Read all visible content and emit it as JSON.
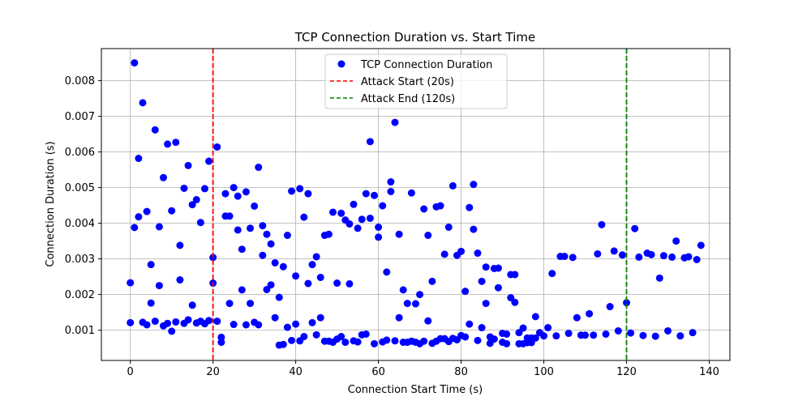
{
  "chart_data": {
    "type": "scatter",
    "title": "TCP Connection Duration vs. Start Time",
    "xlabel": "Connection Start Time (s)",
    "ylabel": "Connection Duration (s)",
    "xlim": [
      -7,
      145
    ],
    "ylim": [
      0.00015,
      0.0089
    ],
    "xticks": [
      0,
      20,
      40,
      60,
      80,
      100,
      120,
      140
    ],
    "yticks": [
      0.001,
      0.002,
      0.003,
      0.004,
      0.005,
      0.006,
      0.007,
      0.008
    ],
    "x_tick_labels": [
      "0",
      "20",
      "40",
      "60",
      "80",
      "100",
      "120",
      "140"
    ],
    "y_tick_labels": [
      "0.001",
      "0.002",
      "0.003",
      "0.004",
      "0.005",
      "0.006",
      "0.007",
      "0.008"
    ],
    "grid": true,
    "legend_position": "top-center",
    "colors": {
      "points": "#0000ff",
      "attack_start": "#ff0000",
      "attack_end": "#008000"
    },
    "vlines": [
      {
        "name": "Attack Start (20s)",
        "x": 20,
        "color": "#ff0000",
        "style": "dashed"
      },
      {
        "name": "Attack End (120s)",
        "x": 120,
        "color": "#008000",
        "style": "dashed"
      }
    ],
    "series": [
      {
        "name": "TCP Connection Duration",
        "points": [
          [
            0,
            0.00233
          ],
          [
            0,
            0.00121
          ],
          [
            1,
            0.0085
          ],
          [
            1,
            0.00388
          ],
          [
            2,
            0.00582
          ],
          [
            2,
            0.00418
          ],
          [
            3,
            0.00738
          ],
          [
            3,
            0.00122
          ],
          [
            4,
            0.00433
          ],
          [
            4,
            0.00115
          ],
          [
            5,
            0.00284
          ],
          [
            5,
            0.00176
          ],
          [
            6,
            0.00662
          ],
          [
            6,
            0.00125
          ],
          [
            7,
            0.0039
          ],
          [
            7,
            0.00225
          ],
          [
            8,
            0.00528
          ],
          [
            8,
            0.00112
          ],
          [
            9,
            0.00622
          ],
          [
            9,
            0.00119
          ],
          [
            10,
            0.00435
          ],
          [
            10,
            0.00097
          ],
          [
            11,
            0.00627
          ],
          [
            11,
            0.00123
          ],
          [
            12,
            0.00338
          ],
          [
            12,
            0.00241
          ],
          [
            13,
            0.00498
          ],
          [
            13,
            0.00119
          ],
          [
            14,
            0.00562
          ],
          [
            14,
            0.00129
          ],
          [
            15,
            0.00452
          ],
          [
            15,
            0.0017
          ],
          [
            16,
            0.00466
          ],
          [
            16,
            0.0012
          ],
          [
            17,
            0.00402
          ],
          [
            17,
            0.00125
          ],
          [
            18,
            0.00497
          ],
          [
            18,
            0.00118
          ],
          [
            19,
            0.00574
          ],
          [
            19,
            0.00127
          ],
          [
            20,
            0.00304
          ],
          [
            20,
            0.00232
          ],
          [
            21,
            0.00614
          ],
          [
            21,
            0.00125
          ],
          [
            22,
            0.0008
          ],
          [
            22,
            0.00066
          ],
          [
            23,
            0.00483
          ],
          [
            23,
            0.0042
          ],
          [
            24,
            0.0042
          ],
          [
            24,
            0.00175
          ],
          [
            25,
            0.005
          ],
          [
            25,
            0.00116
          ],
          [
            26,
            0.00476
          ],
          [
            26,
            0.00381
          ],
          [
            27,
            0.00327
          ],
          [
            27,
            0.00213
          ],
          [
            28,
            0.00488
          ],
          [
            28,
            0.00115
          ],
          [
            29,
            0.00386
          ],
          [
            29,
            0.00175
          ],
          [
            30,
            0.00448
          ],
          [
            30,
            0.00122
          ],
          [
            31,
            0.00557
          ],
          [
            31,
            0.00115
          ],
          [
            32,
            0.00393
          ],
          [
            32,
            0.0031
          ],
          [
            33,
            0.00369
          ],
          [
            33,
            0.00214
          ],
          [
            34,
            0.00342
          ],
          [
            34,
            0.00227
          ],
          [
            35,
            0.00289
          ],
          [
            35,
            0.00135
          ],
          [
            36,
            0.00192
          ],
          [
            36,
            0.00058
          ],
          [
            37,
            0.00278
          ],
          [
            37,
            0.0006
          ],
          [
            38,
            0.00366
          ],
          [
            38,
            0.00108
          ],
          [
            39,
            0.0049
          ],
          [
            39,
            0.00071
          ],
          [
            40,
            0.00252
          ],
          [
            40,
            0.00117
          ],
          [
            41,
            0.00497
          ],
          [
            41,
            0.0007
          ],
          [
            42,
            0.00417
          ],
          [
            42,
            0.00082
          ],
          [
            43,
            0.00483
          ],
          [
            43,
            0.00231
          ],
          [
            44,
            0.00284
          ],
          [
            44,
            0.00121
          ],
          [
            45,
            0.00306
          ],
          [
            45,
            0.00087
          ],
          [
            46,
            0.00248
          ],
          [
            46,
            0.00135
          ],
          [
            47,
            0.00366
          ],
          [
            47,
            0.00069
          ],
          [
            48,
            0.00369
          ],
          [
            48,
            0.00069
          ],
          [
            49,
            0.00431
          ],
          [
            49,
            0.00066
          ],
          [
            50,
            0.00232
          ],
          [
            50,
            0.00075
          ],
          [
            51,
            0.00428
          ],
          [
            51,
            0.00082
          ],
          [
            52,
            0.00409
          ],
          [
            52,
            0.00066
          ],
          [
            53,
            0.00398
          ],
          [
            53,
            0.0023
          ],
          [
            54,
            0.00453
          ],
          [
            54,
            0.0007
          ],
          [
            55,
            0.00386
          ],
          [
            55,
            0.00067
          ],
          [
            56,
            0.00411
          ],
          [
            56,
            0.00087
          ],
          [
            57,
            0.00483
          ],
          [
            57,
            0.00089
          ],
          [
            58,
            0.00629
          ],
          [
            58,
            0.00414
          ],
          [
            59,
            0.00478
          ],
          [
            59,
            0.00062
          ],
          [
            60,
            0.00389
          ],
          [
            60,
            0.00361
          ],
          [
            61,
            0.00449
          ],
          [
            61,
            0.00067
          ],
          [
            62,
            0.00263
          ],
          [
            62,
            0.00072
          ],
          [
            63,
            0.00516
          ],
          [
            63,
            0.00489
          ],
          [
            64,
            0.00683
          ],
          [
            64,
            0.0007
          ],
          [
            65,
            0.00369
          ],
          [
            65,
            0.00135
          ],
          [
            66,
            0.00213
          ],
          [
            66,
            0.00066
          ],
          [
            67,
            0.00175
          ],
          [
            67,
            0.00066
          ],
          [
            68,
            0.00485
          ],
          [
            68,
            0.00069
          ],
          [
            69,
            0.00174
          ],
          [
            69,
            0.00066
          ],
          [
            70,
            0.002
          ],
          [
            70,
            0.00062
          ],
          [
            71,
            0.0044
          ],
          [
            71,
            0.00069
          ],
          [
            72,
            0.00366
          ],
          [
            72,
            0.00126
          ],
          [
            73,
            0.00237
          ],
          [
            73,
            0.00063
          ],
          [
            74,
            0.00446
          ],
          [
            74,
            0.00069
          ],
          [
            75,
            0.00449
          ],
          [
            75,
            0.00076
          ],
          [
            76,
            0.00313
          ],
          [
            76,
            0.00076
          ],
          [
            77,
            0.00389
          ],
          [
            77,
            0.00068
          ],
          [
            78,
            0.00505
          ],
          [
            78,
            0.00077
          ],
          [
            79,
            0.0031
          ],
          [
            79,
            0.00073
          ],
          [
            80,
            0.00321
          ],
          [
            80,
            0.00085
          ],
          [
            81,
            0.00209
          ],
          [
            81,
            0.00081
          ],
          [
            82,
            0.00444
          ],
          [
            82,
            0.00117
          ],
          [
            83,
            0.00509
          ],
          [
            83,
            0.00383
          ],
          [
            84,
            0.00316
          ],
          [
            84,
            0.00071
          ],
          [
            85,
            0.00237
          ],
          [
            85,
            0.00107
          ],
          [
            86,
            0.00277
          ],
          [
            86,
            0.00175
          ],
          [
            87,
            0.00081
          ],
          [
            87,
            0.00063
          ],
          [
            88,
            0.00273
          ],
          [
            88,
            0.00075
          ],
          [
            89,
            0.00274
          ],
          [
            89,
            0.00219
          ],
          [
            90,
            0.00091
          ],
          [
            90,
            0.00066
          ],
          [
            91,
            0.00089
          ],
          [
            91,
            0.00062
          ],
          [
            92,
            0.00256
          ],
          [
            92,
            0.00191
          ],
          [
            93,
            0.00256
          ],
          [
            93,
            0.00178
          ],
          [
            94,
            0.00093
          ],
          [
            94,
            0.00062
          ],
          [
            95,
            0.00106
          ],
          [
            95,
            0.00062
          ],
          [
            96,
            0.00078
          ],
          [
            96,
            0.00065
          ],
          [
            97,
            0.00078
          ],
          [
            97,
            0.00065
          ],
          [
            98,
            0.00138
          ],
          [
            98,
            0.00078
          ],
          [
            99,
            0.00093
          ],
          [
            100,
            0.00084
          ],
          [
            101,
            0.00107
          ],
          [
            102,
            0.00259
          ],
          [
            103,
            0.00084
          ],
          [
            104,
            0.00307
          ],
          [
            105,
            0.00307
          ],
          [
            106,
            0.00091
          ],
          [
            107,
            0.00304
          ],
          [
            108,
            0.00135
          ],
          [
            109,
            0.00086
          ],
          [
            110,
            0.00086
          ],
          [
            111,
            0.00146
          ],
          [
            112,
            0.00086
          ],
          [
            113,
            0.00314
          ],
          [
            114,
            0.00396
          ],
          [
            115,
            0.00089
          ],
          [
            116,
            0.00166
          ],
          [
            117,
            0.00322
          ],
          [
            118,
            0.00098
          ],
          [
            119,
            0.00311
          ],
          [
            120,
            0.00177
          ],
          [
            121,
            0.00092
          ],
          [
            122,
            0.00385
          ],
          [
            123,
            0.00305
          ],
          [
            124,
            0.00085
          ],
          [
            125,
            0.00316
          ],
          [
            126,
            0.00312
          ],
          [
            127,
            0.00083
          ],
          [
            128,
            0.00246
          ],
          [
            129,
            0.00309
          ],
          [
            130,
            0.00098
          ],
          [
            131,
            0.00305
          ],
          [
            132,
            0.0035
          ],
          [
            133,
            0.00084
          ],
          [
            134,
            0.00303
          ],
          [
            135,
            0.00306
          ],
          [
            136,
            0.00093
          ],
          [
            137,
            0.00298
          ],
          [
            138,
            0.00338
          ]
        ]
      }
    ]
  }
}
